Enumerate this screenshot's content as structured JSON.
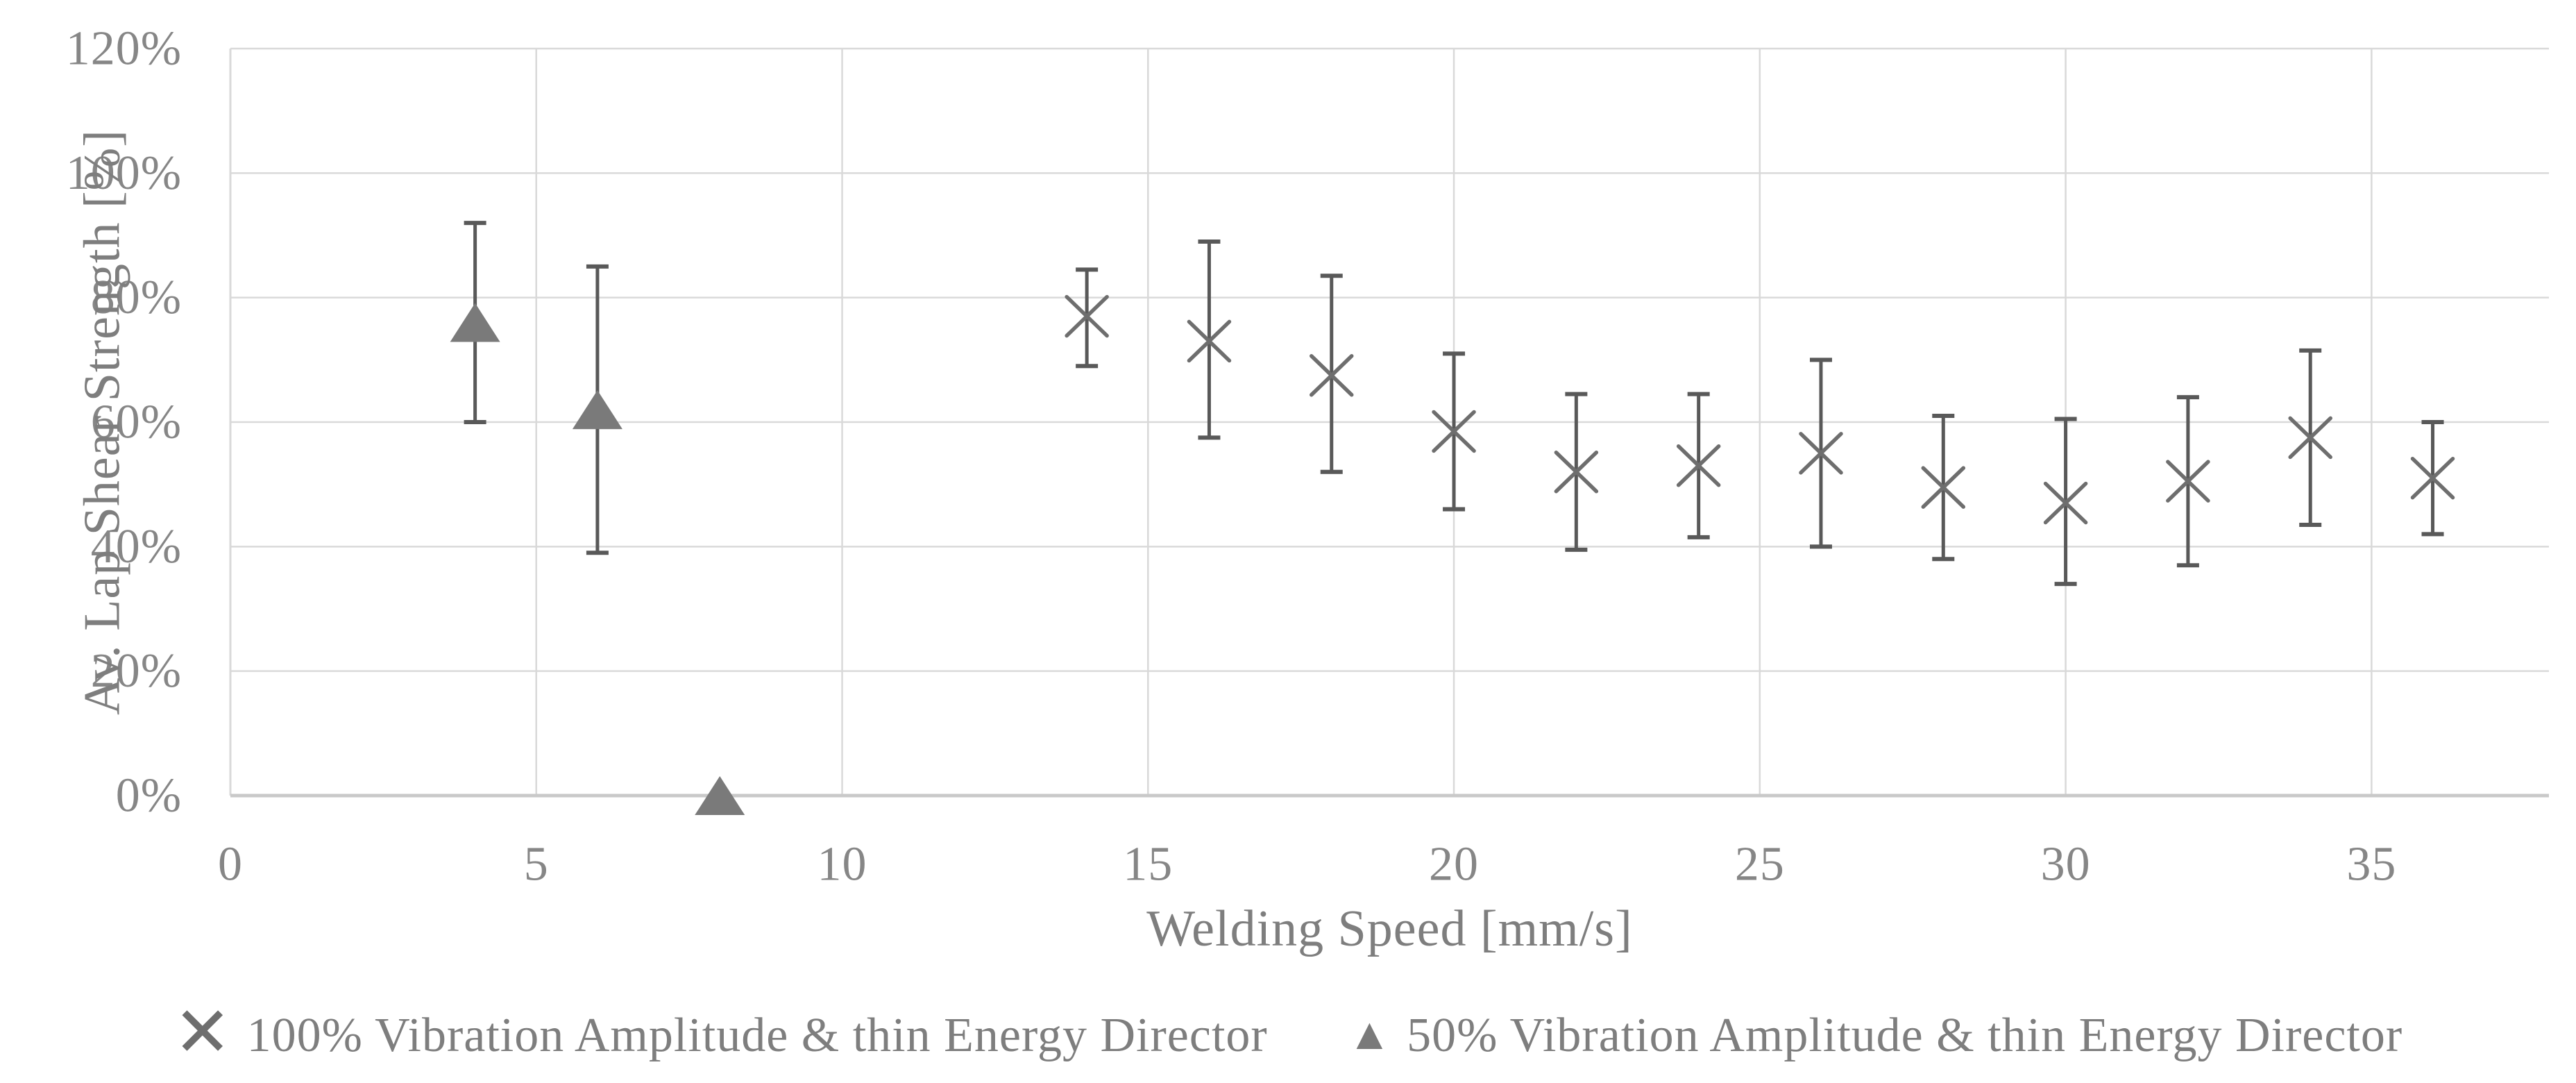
{
  "chart_data": {
    "type": "scatter",
    "title": "",
    "xlabel": "Welding Speed [mm/s]",
    "ylabel": "Av. Lap Shear Strength [%]",
    "x_ticks": [
      0,
      5,
      10,
      15,
      20,
      25,
      30,
      35
    ],
    "y_ticks_percent": [
      0,
      20,
      40,
      60,
      80,
      100,
      120
    ],
    "y_tick_labels": [
      "0%",
      "20%",
      "40%",
      "60%",
      "80%",
      "100%",
      "120%"
    ],
    "xlim": [
      0,
      37.9
    ],
    "ylim_percent": [
      0,
      120
    ],
    "grid": true,
    "legend_position": "bottom",
    "series": [
      {
        "name": "100% Vibration Amplitude & thin Energy Director",
        "marker": "x",
        "points": [
          {
            "x": 14,
            "y": 77,
            "err_lo": 69,
            "err_hi": 84.5
          },
          {
            "x": 16,
            "y": 73,
            "err_lo": 57.5,
            "err_hi": 89
          },
          {
            "x": 18,
            "y": 67.5,
            "err_lo": 52,
            "err_hi": 83.5
          },
          {
            "x": 20,
            "y": 58.5,
            "err_lo": 46,
            "err_hi": 71
          },
          {
            "x": 22,
            "y": 52,
            "err_lo": 39.5,
            "err_hi": 64.5
          },
          {
            "x": 24,
            "y": 53,
            "err_lo": 41.5,
            "err_hi": 64.5
          },
          {
            "x": 26,
            "y": 55,
            "err_lo": 40,
            "err_hi": 70
          },
          {
            "x": 28,
            "y": 49.5,
            "err_lo": 38,
            "err_hi": 61
          },
          {
            "x": 30,
            "y": 47,
            "err_lo": 34,
            "err_hi": 60.5
          },
          {
            "x": 32,
            "y": 50.5,
            "err_lo": 37,
            "err_hi": 64
          },
          {
            "x": 34,
            "y": 57.5,
            "err_lo": 43.5,
            "err_hi": 71.5
          },
          {
            "x": 36,
            "y": 51,
            "err_lo": 42,
            "err_hi": 60
          }
        ]
      },
      {
        "name": "50% Vibration Amplitude & thin Energy Director",
        "marker": "triangle",
        "points": [
          {
            "x": 4,
            "y": 76,
            "err_lo": 60,
            "err_hi": 92
          },
          {
            "x": 6,
            "y": 62,
            "err_lo": 39,
            "err_hi": 85
          },
          {
            "x": 8,
            "y": 0
          }
        ]
      }
    ]
  },
  "legend": {
    "items": [
      {
        "symbol": "✕",
        "label": "100% Vibration Amplitude & thin Energy Director"
      },
      {
        "symbol": "▲",
        "label": "50% Vibration Amplitude & thin Energy Director"
      }
    ]
  },
  "colors": {
    "gridline": "#d9d9d9",
    "axis_line": "#c9c9c9",
    "tick_text": "#868686",
    "title_text": "#7e7e7e",
    "error_bar": "#595959",
    "x_marker": "#6e6e6e",
    "triangle_fill": "#7a7a7a",
    "background": "#ffffff"
  }
}
